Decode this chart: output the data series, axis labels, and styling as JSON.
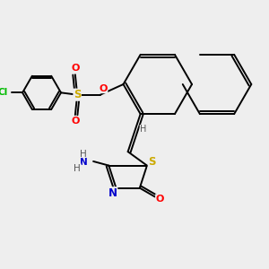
{
  "bg_color": "#eeeeee",
  "atom_colors": {
    "C": "#000000",
    "N": "#0000cc",
    "O": "#ff0000",
    "S": "#ccaa00",
    "Cl": "#00bb00",
    "H": "#555555"
  },
  "figsize": [
    3.0,
    3.0
  ],
  "dpi": 100,
  "xlim": [
    -0.5,
    5.5
  ],
  "ylim": [
    -3.2,
    3.2
  ]
}
